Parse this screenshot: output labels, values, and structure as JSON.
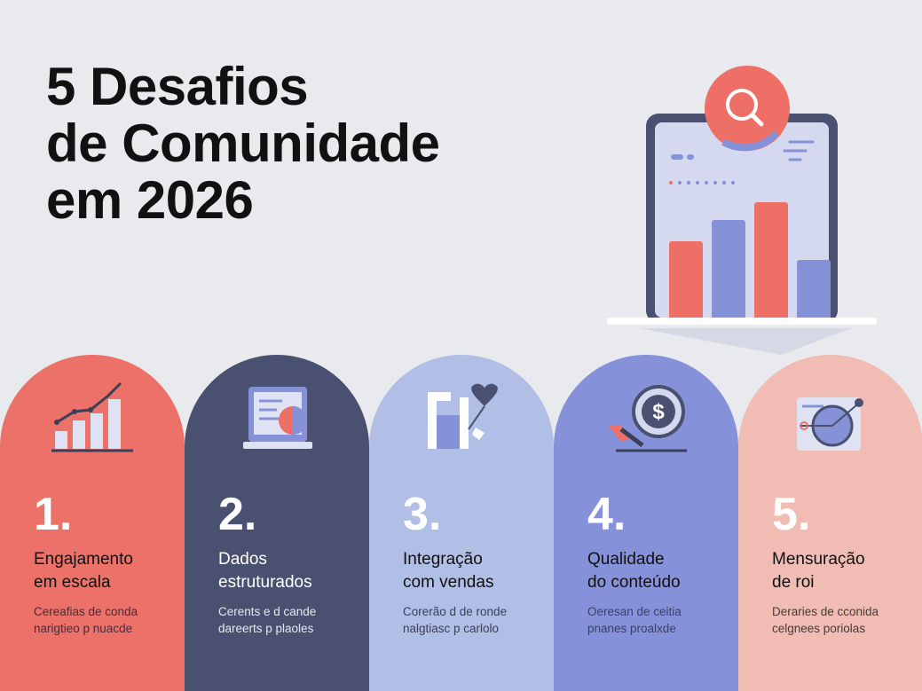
{
  "title": {
    "lines": [
      "5 Desafios",
      "de Comunidade",
      "em 2026"
    ]
  },
  "hero": {
    "icon": "tablet-bar-chart-search-icon",
    "accent": "#ee6f66",
    "secondary": "#8692d8",
    "frame": "#4a5170"
  },
  "challenges": [
    {
      "number": "1.",
      "title": [
        "Engajamento",
        "em escala"
      ],
      "desc": [
        "Cereafias de conda",
        "narigtieo p nuacde"
      ],
      "color": "#ec7169",
      "text": "#111111",
      "desc_color": "#4a2c3a",
      "icon": "growth-chart-icon"
    },
    {
      "number": "2.",
      "title": [
        "Dados",
        "estruturados"
      ],
      "desc": [
        "Cerents e d cande",
        "dareerts p plaoles"
      ],
      "color": "#4a5170",
      "text": "#ffffff",
      "desc_color": "#e6e8f0",
      "icon": "data-screen-icon"
    },
    {
      "number": "3.",
      "title": [
        "Integração",
        "com vendas"
      ],
      "desc": [
        "Corerão d de ronde",
        "nalgtiasc p carlolo"
      ],
      "color": "#b1bfe6",
      "text": "#111111",
      "desc_color": "#3a3f5a",
      "icon": "puzzle-heart-icon"
    },
    {
      "number": "4.",
      "title": [
        "Qualidade",
        "do conteúdo"
      ],
      "desc": [
        "Oeresan de ceitia",
        "pnanes proalxde"
      ],
      "color": "#8591d8",
      "text": "#111111",
      "desc_color": "#3a3f6a",
      "icon": "dollar-coin-icon"
    },
    {
      "number": "5.",
      "title": [
        "Mensuração",
        "de roi"
      ],
      "desc": [
        "Deraries de cconida",
        "celgnees poriolas"
      ],
      "color": "#f0bcb3",
      "text": "#111111",
      "desc_color": "#4a3a3a",
      "icon": "target-gauge-icon"
    }
  ]
}
